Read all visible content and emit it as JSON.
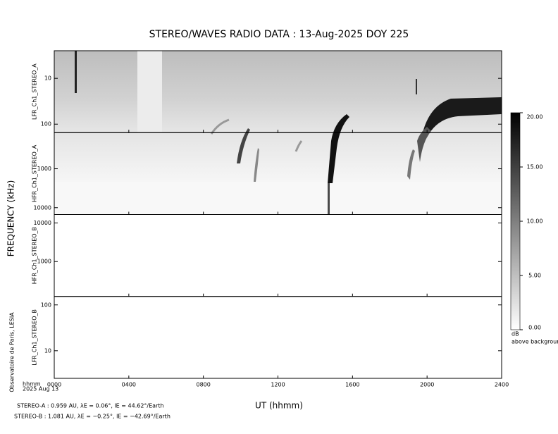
{
  "title": "STEREO/WAVES  RADIO  DATA : 13-Aug-2025  DOY 225",
  "y_label": "FREQUENCY (kHz)",
  "x_axis": {
    "label": "UT (hhmm)",
    "unit_label": "hhmm",
    "date_label": "2025 Aug 13",
    "xlim": [
      0,
      24
    ],
    "xticks": [
      {
        "value": 0,
        "label": "0000"
      },
      {
        "value": 4,
        "label": "0400"
      },
      {
        "value": 8,
        "label": "0800"
      },
      {
        "value": 12,
        "label": "1200"
      },
      {
        "value": 16,
        "label": "1600"
      },
      {
        "value": 20,
        "label": "2000"
      },
      {
        "value": 24,
        "label": "2400"
      }
    ]
  },
  "credit": "Observatoire de Paris, LESIA",
  "panels": [
    {
      "label": "LFR_Ch1_STEREO_A",
      "ylim": [
        2.5,
        153
      ],
      "log": true,
      "yticks": [
        10,
        100
      ]
    },
    {
      "label": "HFR_Ch1_STEREO_A",
      "ylim": [
        118,
        15000
      ],
      "log": true,
      "yticks": [
        1000,
        10000
      ]
    },
    {
      "label": "HFR_Ch1_STEREO_B",
      "ylim": [
        16500,
        125
      ],
      "log": true,
      "yticks": [
        10000,
        1000
      ]
    },
    {
      "label": "LFR_Ch1_STEREO_B",
      "ylim": [
        153,
        2.5
      ],
      "log": true,
      "yticks": [
        100,
        10
      ]
    }
  ],
  "colorbar": {
    "ylim": [
      0,
      20
    ],
    "unit": "dB",
    "caption": "above background",
    "ticks": [
      {
        "value": 20,
        "label": "20.00"
      },
      {
        "value": 15,
        "label": "15.00"
      },
      {
        "value": 10,
        "label": "10.00"
      },
      {
        "value": 5,
        "label": "5.00"
      },
      {
        "value": 0,
        "label": "0.00"
      }
    ]
  },
  "spacecraft": [
    "STEREO-A : 0.959 AU, λE = 0.06°, lE = 44.62°/Earth",
    "STEREO-B : 1.081 AU, λE = −0.25°, lE = −42.69°/Earth"
  ]
}
